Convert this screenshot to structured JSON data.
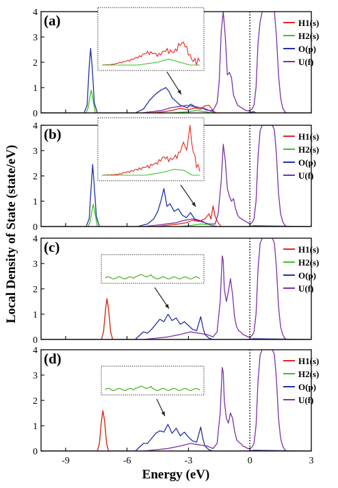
{
  "figure": {
    "ylabel": "Local Density of State (state/eV)",
    "xlabel": "Energy (eV)"
  },
  "chart_data": {
    "type": "line",
    "xlim": [
      -10.2,
      3
    ],
    "ylim": [
      0,
      4
    ],
    "x_ticks": [
      -9,
      -6,
      -3,
      0,
      3
    ],
    "x_tick_labels": [
      "-9",
      "-6",
      "-3",
      "0",
      "3"
    ],
    "y_ticks": [
      0,
      1,
      2,
      3,
      4
    ],
    "y_tick_labels": [
      "0",
      "1",
      "2",
      "3",
      "4"
    ],
    "fermi_level": 0,
    "legend": {
      "position": "top-right",
      "entries": [
        {
          "name": "H1(s)",
          "color": "#e8231d"
        },
        {
          "name": "H2(s)",
          "color": "#3fbf2a"
        },
        {
          "name": "O(p)",
          "color": "#1c2fa8"
        },
        {
          "name": "U(f)",
          "color": "#7a2ea8"
        }
      ]
    },
    "panels": [
      {
        "label": "(a)",
        "series": [
          {
            "name": "O(p)",
            "color": "#1c2fa8",
            "x": [
              -10.2,
              -8.1,
              -7.95,
              -7.85,
              -7.78,
              -7.7,
              -7.6,
              -7.45,
              -5.6,
              -5.2,
              -4.9,
              -4.6,
              -4.35,
              -4.1,
              -3.95,
              -3.8,
              -3.6,
              -3.4,
              -3.2,
              -3.05,
              -2.9,
              -2.75,
              -2.6,
              -2.45,
              -2.3,
              -2.15,
              -2.0,
              -1.8,
              -1.6,
              -0.2,
              0.2,
              0.3,
              3
            ],
            "y": [
              0,
              0,
              0.3,
              1.8,
              2.55,
              1.8,
              0.4,
              0,
              0,
              0.15,
              0.5,
              0.75,
              0.9,
              1.0,
              0.85,
              0.6,
              0.45,
              0.3,
              0.25,
              0.2,
              0.35,
              0.28,
              0.2,
              0.15,
              0.18,
              0.12,
              0.1,
              0.05,
              0,
              0,
              0.05,
              0,
              0
            ]
          },
          {
            "name": "H2(s)",
            "color": "#3fbf2a",
            "x": [
              -10.2,
              -8.0,
              -7.9,
              -7.82,
              -7.75,
              -7.68,
              -7.55,
              -3.8,
              -3.0,
              -2.6,
              -2.2,
              -1.8,
              3
            ],
            "y": [
              0,
              0,
              0.2,
              0.6,
              0.9,
              0.6,
              0,
              0,
              0.05,
              0.1,
              0.05,
              0,
              0
            ]
          },
          {
            "name": "H1(s)",
            "color": "#e8231d",
            "x": [
              -10.2,
              -4.8,
              -4.2,
              -3.8,
              -3.4,
              -3.0,
              -2.7,
              -2.4,
              -2.2,
              -2.0,
              -1.85,
              -1.7,
              3
            ],
            "y": [
              0,
              0,
              0.05,
              0.1,
              0.18,
              0.12,
              0.2,
              0.15,
              0.28,
              0.3,
              0.15,
              0,
              0
            ]
          },
          {
            "name": "U(f)",
            "color": "#7a2ea8",
            "x": [
              -10.2,
              -5.3,
              -4.8,
              -4.3,
              -3.9,
              -3.5,
              -3.1,
              -2.7,
              -2.3,
              -2.0,
              -1.8,
              -1.6,
              -1.5,
              -1.4,
              -1.3,
              -1.2,
              -1.1,
              -1.0,
              -0.9,
              -0.8,
              -0.7,
              -0.6,
              -0.5,
              -0.4,
              -0.3,
              -0.2,
              -0.1,
              0.0,
              0.1,
              0.2,
              0.3,
              0.4,
              0.5,
              0.6,
              0.7,
              0.8,
              0.9,
              1.0,
              1.1,
              1.2,
              1.3,
              1.4,
              1.5,
              1.6,
              1.7,
              1.8,
              3
            ],
            "y": [
              0,
              0,
              0.05,
              0.1,
              0.2,
              0.25,
              0.3,
              0.25,
              0.2,
              0.1,
              0.1,
              0.4,
              1.2,
              3.2,
              4.2,
              3.0,
              1.5,
              1.6,
              1.4,
              0.7,
              0.5,
              0.3,
              0.25,
              0.2,
              0.15,
              0.1,
              0.08,
              0.1,
              0.15,
              0.3,
              1.0,
              2.8,
              3.6,
              4.2,
              4.5,
              4.3,
              4.2,
              4.2,
              4.1,
              4.0,
              3.0,
              1.5,
              0.6,
              0.2,
              0.05,
              0,
              0
            ]
          }
        ]
      },
      {
        "label": "(b)",
        "series": [
          {
            "name": "O(p)",
            "color": "#1c2fa8",
            "x": [
              -10.2,
              -8.0,
              -7.85,
              -7.75,
              -7.68,
              -7.6,
              -7.5,
              -7.35,
              -5.5,
              -5.0,
              -4.7,
              -4.5,
              -4.35,
              -4.2,
              -4.05,
              -3.9,
              -3.7,
              -3.5,
              -3.3,
              -3.1,
              -2.9,
              -2.7,
              -2.5,
              -2.3,
              -2.1,
              -1.9,
              -1.6,
              -0.2,
              0.2,
              3
            ],
            "y": [
              0,
              0,
              0.3,
              1.6,
              2.45,
              1.6,
              0.4,
              0,
              0,
              0.1,
              0.3,
              0.6,
              1.0,
              1.5,
              0.8,
              0.9,
              0.6,
              0.7,
              0.45,
              0.35,
              0.55,
              0.3,
              0.25,
              0.2,
              0.1,
              0.05,
              0,
              0,
              0.03,
              0
            ]
          },
          {
            "name": "H2(s)",
            "color": "#3fbf2a",
            "x": [
              -10.2,
              -7.9,
              -7.8,
              -7.72,
              -7.65,
              -7.58,
              -7.45,
              -3.5,
              -2.8,
              -2.4,
              -2.0,
              -1.7,
              3
            ],
            "y": [
              0,
              0,
              0.2,
              0.6,
              0.88,
              0.6,
              0,
              0,
              0.05,
              0.1,
              0.08,
              0,
              0
            ]
          },
          {
            "name": "H1(s)",
            "color": "#e8231d",
            "x": [
              -10.2,
              -4.6,
              -4.0,
              -3.5,
              -3.1,
              -2.8,
              -2.5,
              -2.2,
              -2.0,
              -1.9,
              -1.8,
              -1.7,
              -1.55,
              -1.4,
              3
            ],
            "y": [
              0,
              0,
              0.05,
              0.1,
              0.15,
              0.25,
              0.2,
              0.3,
              0.5,
              0.3,
              0.82,
              0.4,
              0.15,
              0,
              0
            ]
          },
          {
            "name": "U(f)",
            "color": "#7a2ea8",
            "x": [
              -10.2,
              -5.2,
              -4.6,
              -4.1,
              -3.6,
              -3.2,
              -2.8,
              -2.4,
              -2.0,
              -1.7,
              -1.55,
              -1.4,
              -1.3,
              -1.2,
              -1.1,
              -1.0,
              -0.9,
              -0.8,
              -0.7,
              -0.6,
              -0.5,
              -0.4,
              -0.3,
              -0.2,
              -0.1,
              0.0,
              0.1,
              0.2,
              0.3,
              0.4,
              0.5,
              0.6,
              0.7,
              0.8,
              0.9,
              1.0,
              1.1,
              1.2,
              1.3,
              1.4,
              1.5,
              1.6,
              1.7,
              1.8,
              3
            ],
            "y": [
              0,
              0,
              0.05,
              0.1,
              0.15,
              0.25,
              0.3,
              0.2,
              0.1,
              0.1,
              0.5,
              1.8,
              3.25,
              2.6,
              1.5,
              1.2,
              1.0,
              1.1,
              0.7,
              0.45,
              0.35,
              0.3,
              0.25,
              0.2,
              0.15,
              0.1,
              0.15,
              0.3,
              1.0,
              2.8,
              3.8,
              4.3,
              4.5,
              4.4,
              4.2,
              4.2,
              4.1,
              3.8,
              2.8,
              1.3,
              0.5,
              0.2,
              0.05,
              0,
              0
            ]
          }
        ]
      },
      {
        "label": "(c)",
        "series": [
          {
            "name": "O(p)",
            "color": "#1c2fa8",
            "x": [
              -10.2,
              -5.6,
              -5.4,
              -5.2,
              -5.0,
              -4.8,
              -4.6,
              -4.4,
              -4.2,
              -4.0,
              -3.8,
              -3.6,
              -3.4,
              -3.2,
              -3.0,
              -2.8,
              -2.6,
              -2.4,
              -2.3,
              -2.2,
              -2.0,
              -1.8,
              -0.2,
              0.2,
              3
            ],
            "y": [
              0,
              0,
              0.15,
              0.3,
              0.25,
              0.4,
              0.6,
              0.8,
              0.7,
              1.0,
              0.75,
              0.85,
              0.6,
              0.7,
              0.55,
              0.4,
              0.35,
              0.9,
              0.5,
              0.2,
              0.05,
              0,
              0,
              0.03,
              0
            ]
          },
          {
            "name": "H2(s)",
            "color": "#3fbf2a",
            "x": [
              -10.2,
              -7.25,
              -7.15,
              -7.05,
              -6.98,
              -6.9,
              -6.8,
              -6.7,
              3
            ],
            "y": [
              0,
              0,
              0.3,
              1.2,
              1.6,
              1.2,
              0.3,
              0,
              0
            ]
          },
          {
            "name": "H1(s)",
            "color": "#e8231d",
            "x": [
              -10.2,
              -7.25,
              -7.15,
              -7.05,
              -6.98,
              -6.9,
              -6.8,
              -6.7,
              3
            ],
            "y": [
              0,
              0,
              0.3,
              1.2,
              1.62,
              1.2,
              0.3,
              0,
              0
            ]
          },
          {
            "name": "U(f)",
            "color": "#7a2ea8",
            "x": [
              -10.2,
              -5.2,
              -4.6,
              -4.0,
              -3.4,
              -2.9,
              -2.5,
              -2.1,
              -1.8,
              -1.6,
              -1.45,
              -1.35,
              -1.3,
              -1.25,
              -1.15,
              -1.05,
              -0.95,
              -0.85,
              -0.75,
              -0.65,
              -0.55,
              -0.45,
              -0.35,
              -0.2,
              -0.1,
              0.0,
              0.1,
              0.2,
              0.3,
              0.4,
              0.5,
              0.6,
              0.7,
              0.8,
              0.9,
              1.0,
              1.1,
              1.2,
              1.3,
              1.4,
              1.5,
              1.6,
              1.7,
              1.8,
              3
            ],
            "y": [
              0,
              0,
              0.05,
              0.1,
              0.2,
              0.3,
              0.25,
              0.2,
              0.1,
              0.3,
              1.5,
              3.3,
              3.1,
              2.0,
              1.5,
              1.9,
              2.4,
              1.8,
              0.9,
              0.5,
              0.35,
              0.3,
              0.2,
              0.15,
              0.1,
              0.1,
              0.15,
              0.3,
              1.0,
              2.8,
              3.8,
              4.3,
              4.5,
              4.4,
              4.2,
              4.2,
              4.1,
              3.8,
              2.8,
              1.3,
              0.5,
              0.2,
              0.05,
              0,
              0
            ]
          }
        ]
      },
      {
        "label": "(d)",
        "series": [
          {
            "name": "O(p)",
            "color": "#1c2fa8",
            "x": [
              -10.2,
              -5.6,
              -5.4,
              -5.2,
              -5.0,
              -4.8,
              -4.6,
              -4.4,
              -4.2,
              -4.0,
              -3.8,
              -3.6,
              -3.4,
              -3.2,
              -3.0,
              -2.8,
              -2.6,
              -2.4,
              -2.3,
              -2.2,
              -2.0,
              -1.8,
              -0.2,
              0.2,
              3
            ],
            "y": [
              0,
              0,
              0.15,
              0.3,
              0.3,
              0.5,
              0.7,
              0.8,
              0.75,
              1.05,
              0.7,
              0.9,
              0.6,
              0.75,
              0.55,
              0.4,
              0.35,
              0.95,
              0.5,
              0.2,
              0.05,
              0,
              0,
              0.03,
              0
            ]
          },
          {
            "name": "H2(s)",
            "color": "#3fbf2a",
            "x": [
              -10.2,
              -7.45,
              -7.35,
              -7.25,
              -7.18,
              -7.1,
              -7.0,
              -6.9,
              3
            ],
            "y": [
              0,
              0,
              0.3,
              1.2,
              1.58,
              1.2,
              0.3,
              0,
              0
            ]
          },
          {
            "name": "H1(s)",
            "color": "#e8231d",
            "x": [
              -10.2,
              -7.45,
              -7.35,
              -7.25,
              -7.18,
              -7.1,
              -7.0,
              -6.9,
              3
            ],
            "y": [
              0,
              0,
              0.3,
              1.2,
              1.6,
              1.2,
              0.3,
              0,
              0
            ]
          },
          {
            "name": "U(f)",
            "color": "#7a2ea8",
            "x": [
              -10.2,
              -5.2,
              -4.6,
              -4.0,
              -3.4,
              -2.9,
              -2.5,
              -2.1,
              -1.8,
              -1.6,
              -1.45,
              -1.35,
              -1.3,
              -1.25,
              -1.15,
              -1.05,
              -0.95,
              -0.85,
              -0.75,
              -0.65,
              -0.55,
              -0.45,
              -0.35,
              -0.2,
              -0.1,
              0.0,
              0.1,
              0.2,
              0.3,
              0.4,
              0.5,
              0.6,
              0.7,
              0.8,
              0.9,
              1.0,
              1.1,
              1.2,
              1.3,
              1.4,
              1.5,
              1.6,
              1.7,
              1.8,
              3
            ],
            "y": [
              0,
              0,
              0.05,
              0.1,
              0.2,
              0.3,
              0.25,
              0.2,
              0.1,
              0.3,
              1.5,
              3.3,
              3.1,
              2.0,
              1.3,
              1.1,
              1.5,
              1.3,
              0.8,
              0.45,
              0.35,
              0.3,
              0.2,
              0.15,
              0.1,
              0.1,
              0.15,
              0.3,
              1.0,
              2.8,
              3.8,
              4.3,
              4.5,
              4.4,
              4.2,
              4.2,
              4.1,
              3.8,
              2.8,
              1.3,
              0.5,
              0.2,
              0.05,
              0,
              0
            ]
          }
        ]
      }
    ]
  }
}
